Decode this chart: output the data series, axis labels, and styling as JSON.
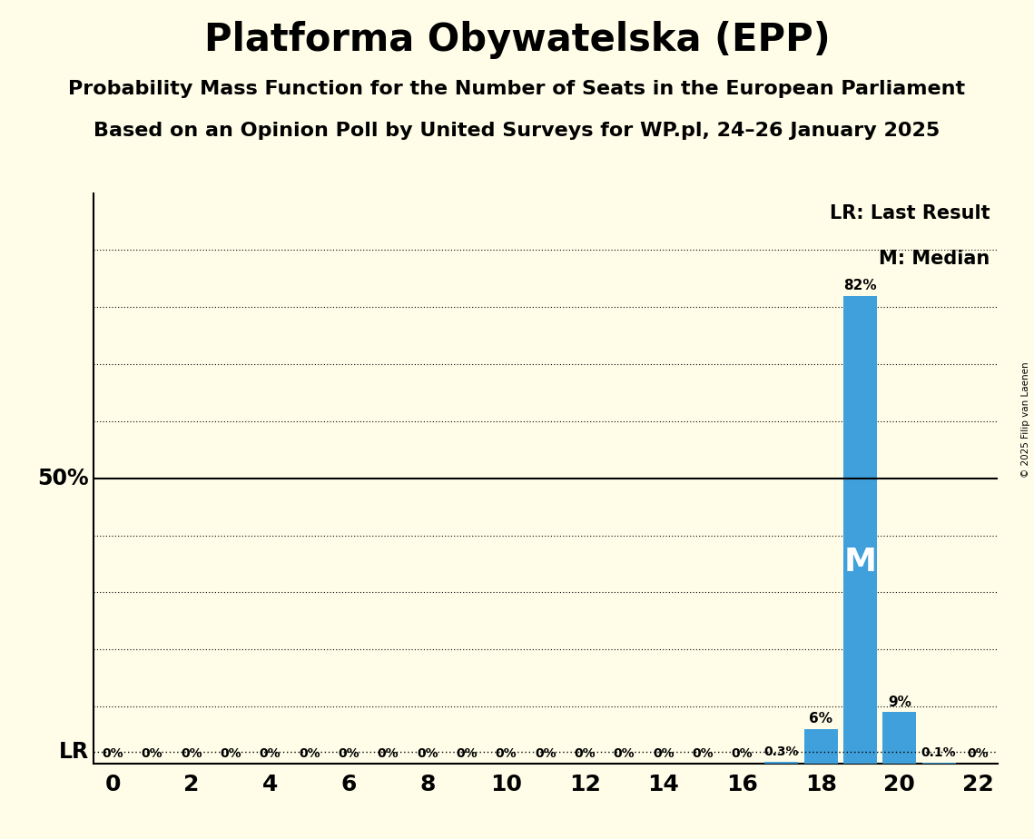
{
  "title": "Platforma Obywatelska (EPP)",
  "subtitle1": "Probability Mass Function for the Number of Seats in the European Parliament",
  "subtitle2": "Based on an Opinion Poll by United Surveys for WP.pl, 24–26 January 2025",
  "copyright": "© 2025 Filip van Laenen",
  "seats": [
    0,
    1,
    2,
    3,
    4,
    5,
    6,
    7,
    8,
    9,
    10,
    11,
    12,
    13,
    14,
    15,
    16,
    17,
    18,
    19,
    20,
    21,
    22
  ],
  "probabilities": [
    0,
    0,
    0,
    0,
    0,
    0,
    0,
    0,
    0,
    0,
    0,
    0,
    0,
    0,
    0,
    0,
    0,
    0.3,
    6,
    82,
    9,
    0.1,
    0
  ],
  "bar_color": "#3fa0dc",
  "background_color": "#fffde8",
  "fifty_pct_line": 50,
  "lr_y": 2.0,
  "median_seat": 19,
  "xlim": [
    -0.5,
    22.5
  ],
  "ylim": [
    0,
    100
  ],
  "title_fontsize": 30,
  "subtitle_fontsize": 16,
  "label_fontsize": 13,
  "legend_fontsize": 15,
  "grid_lines": [
    10,
    20,
    30,
    40,
    60,
    70,
    80,
    90
  ],
  "bar_label_sizes": {
    "zero": 10,
    "small": 10,
    "large": 11
  }
}
